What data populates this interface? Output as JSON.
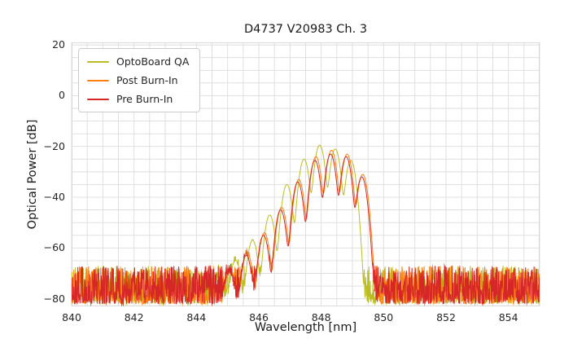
{
  "figure": {
    "title": "D4737 V20983 Ch. 3"
  },
  "chart_data": {
    "type": "line",
    "title": "D4737 V20983 Ch. 3",
    "xlabel": "Wavelength [nm]",
    "ylabel": "Optical Power [dB]",
    "xlim": [
      840,
      855
    ],
    "ylim": [
      -83,
      21
    ],
    "xticks": [
      840,
      842,
      844,
      846,
      848,
      850,
      852,
      854
    ],
    "yticks": [
      20,
      0,
      -20,
      -40,
      -60,
      -80
    ],
    "grid": {
      "on": true,
      "color": "#dcdcdc",
      "x_step": 0.5,
      "y_step": 5
    },
    "legend": {
      "position": "upper-left"
    },
    "sample_step_nm": 0.01,
    "line_width": 1,
    "description": "Optical spectra of a VCSEL channel: noise floor near -78 dB across 840-845 nm and 850-855 nm, multimode emission peak between 845.5 and 849.6 nm with longitudinal-mode fringes spaced ~0.55 nm reaching about -20 dB near 848 nm. OptoBoard QA trace is shifted ~0.35 nm to shorter wavelength versus the burn-in traces.",
    "series": [
      {
        "name": "OptoBoard QA",
        "color": "#bcbd22",
        "mode_sigma_nm": 0.085,
        "noise_floor_dB": {
          "min": -82,
          "max": -67,
          "skew": 1.5
        },
        "modes": [
          [
            844.7,
            -72
          ],
          [
            845.25,
            -65
          ],
          [
            845.8,
            -57
          ],
          [
            846.35,
            -47
          ],
          [
            846.9,
            -35
          ],
          [
            847.45,
            -25
          ],
          [
            847.95,
            -19.5
          ],
          [
            848.45,
            -21
          ],
          [
            848.95,
            -25.5
          ]
        ]
      },
      {
        "name": "Post Burn-In",
        "color": "#ff7f0e",
        "mode_sigma_nm": 0.085,
        "noise_floor_dB": {
          "min": -82,
          "max": -67,
          "skew": 1.5
        },
        "modes": [
          [
            845.08,
            -69
          ],
          [
            845.63,
            -62
          ],
          [
            846.18,
            -54
          ],
          [
            846.73,
            -44
          ],
          [
            847.28,
            -33
          ],
          [
            847.83,
            -24
          ],
          [
            848.33,
            -21.5
          ],
          [
            848.83,
            -23
          ],
          [
            849.33,
            -31
          ]
        ]
      },
      {
        "name": "Pre Burn-In",
        "color": "#d62728",
        "mode_sigma_nm": 0.085,
        "noise_floor_dB": {
          "min": -82,
          "max": -67,
          "skew": 1.5
        },
        "modes": [
          [
            845.05,
            -70
          ],
          [
            845.6,
            -63
          ],
          [
            846.15,
            -55
          ],
          [
            846.7,
            -45
          ],
          [
            847.25,
            -34
          ],
          [
            847.8,
            -25.5
          ],
          [
            848.3,
            -23
          ],
          [
            848.8,
            -24
          ],
          [
            849.3,
            -32
          ]
        ]
      }
    ]
  }
}
